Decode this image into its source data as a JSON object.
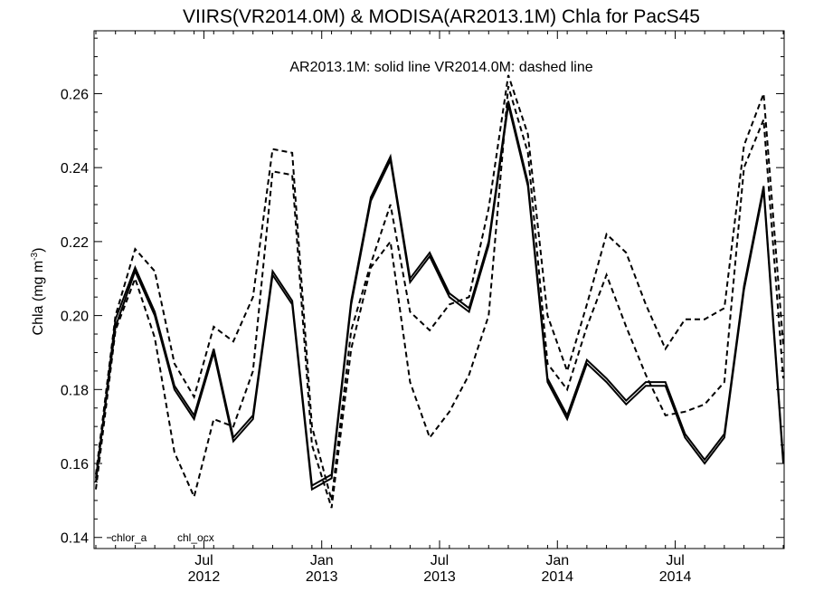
{
  "chart_data": {
    "type": "line",
    "title": "VIIRS(VR2014.0M) & MODISA(AR2013.1M)  Chla for PacS45",
    "annotation": "AR2013.1M: solid line   VR2014.0M: dashed line",
    "ylabel_main": "Chla (mg m",
    "ylabel_sup": "-3",
    "ylabel_close": ")",
    "ylim": [
      0.137,
      0.277
    ],
    "yticks": [
      0.14,
      0.16,
      0.18,
      0.2,
      0.22,
      0.24,
      0.26
    ],
    "ytick_labels": [
      "0.14",
      "0.16",
      "0.18",
      "0.20",
      "0.22",
      "0.24",
      "0.26"
    ],
    "xlim": [
      0,
      35
    ],
    "xticks": [
      {
        "x": 5.5,
        "month": "Jul",
        "year": "2012"
      },
      {
        "x": 11.5,
        "month": "Jan",
        "year": "2013"
      },
      {
        "x": 17.5,
        "month": "Jul",
        "year": "2013"
      },
      {
        "x": 23.5,
        "month": "Jan",
        "year": "2014"
      },
      {
        "x": 29.5,
        "month": "Jul",
        "year": "2014"
      }
    ],
    "legend": [
      {
        "label": "chlor_a"
      },
      {
        "label": "chl_ocx"
      }
    ],
    "grid": false,
    "series": [
      {
        "name": "AR2013.1M chlor_a",
        "style": "solid",
        "x": [
          0,
          1,
          2,
          3,
          4,
          5,
          6,
          7,
          8,
          9,
          10,
          11,
          12,
          13,
          14,
          15,
          16,
          17,
          18,
          19,
          20,
          21,
          22,
          23,
          24,
          25,
          26,
          27,
          28,
          29,
          30,
          31,
          32,
          33,
          34,
          35
        ],
        "y": [
          0.155,
          0.199,
          0.213,
          0.201,
          0.181,
          0.173,
          0.191,
          0.167,
          0.173,
          0.212,
          0.204,
          0.154,
          0.157,
          0.204,
          0.232,
          0.243,
          0.21,
          0.217,
          0.206,
          0.202,
          0.22,
          0.258,
          0.236,
          0.183,
          0.173,
          0.188,
          0.183,
          0.177,
          0.182,
          0.182,
          0.168,
          0.161,
          0.168,
          0.208,
          0.235,
          0.161
        ]
      },
      {
        "name": "AR2013.1M chl_ocx",
        "style": "solid",
        "x": [
          0,
          1,
          2,
          3,
          4,
          5,
          6,
          7,
          8,
          9,
          10,
          11,
          12,
          13,
          14,
          15,
          16,
          17,
          18,
          19,
          20,
          21,
          22,
          23,
          24,
          25,
          26,
          27,
          28,
          29,
          30,
          31,
          32,
          33,
          34,
          35
        ],
        "y": [
          0.156,
          0.197,
          0.212,
          0.2,
          0.18,
          0.172,
          0.19,
          0.166,
          0.172,
          0.211,
          0.203,
          0.153,
          0.156,
          0.203,
          0.231,
          0.242,
          0.209,
          0.216,
          0.205,
          0.201,
          0.219,
          0.257,
          0.235,
          0.182,
          0.172,
          0.187,
          0.182,
          0.176,
          0.181,
          0.181,
          0.167,
          0.16,
          0.167,
          0.207,
          0.234,
          0.16
        ]
      },
      {
        "name": "VR2014.0M chlor_a",
        "style": "dashed",
        "x": [
          0,
          1,
          2,
          3,
          4,
          5,
          6,
          7,
          8,
          9,
          10,
          11,
          12,
          13,
          14,
          15,
          16,
          17,
          18,
          19,
          20,
          21,
          22,
          23,
          24,
          25,
          26,
          27,
          28,
          29,
          30,
          31,
          32,
          33,
          34,
          35
        ],
        "y": [
          0.157,
          0.2,
          0.218,
          0.212,
          0.187,
          0.178,
          0.197,
          0.193,
          0.205,
          0.245,
          0.244,
          0.17,
          0.15,
          0.196,
          0.214,
          0.23,
          0.201,
          0.196,
          0.203,
          0.205,
          0.229,
          0.265,
          0.249,
          0.2,
          0.185,
          0.203,
          0.222,
          0.217,
          0.203,
          0.191,
          0.199,
          0.199,
          0.202,
          0.246,
          0.26,
          0.192
        ]
      },
      {
        "name": "VR2014.0M chl_ocx",
        "style": "dashed",
        "x": [
          0,
          1,
          2,
          3,
          4,
          5,
          6,
          7,
          8,
          9,
          10,
          11,
          12,
          13,
          14,
          15,
          16,
          17,
          18,
          19,
          20,
          21,
          22,
          23,
          24,
          25,
          26,
          27,
          28,
          29,
          30,
          31,
          32,
          33,
          34,
          35
        ],
        "y": [
          0.153,
          0.196,
          0.21,
          0.194,
          0.163,
          0.151,
          0.172,
          0.17,
          0.185,
          0.239,
          0.238,
          0.165,
          0.148,
          0.191,
          0.213,
          0.22,
          0.182,
          0.167,
          0.174,
          0.184,
          0.2,
          0.262,
          0.244,
          0.187,
          0.18,
          0.197,
          0.211,
          0.197,
          0.184,
          0.173,
          0.174,
          0.176,
          0.182,
          0.24,
          0.253,
          0.183
        ]
      }
    ]
  }
}
